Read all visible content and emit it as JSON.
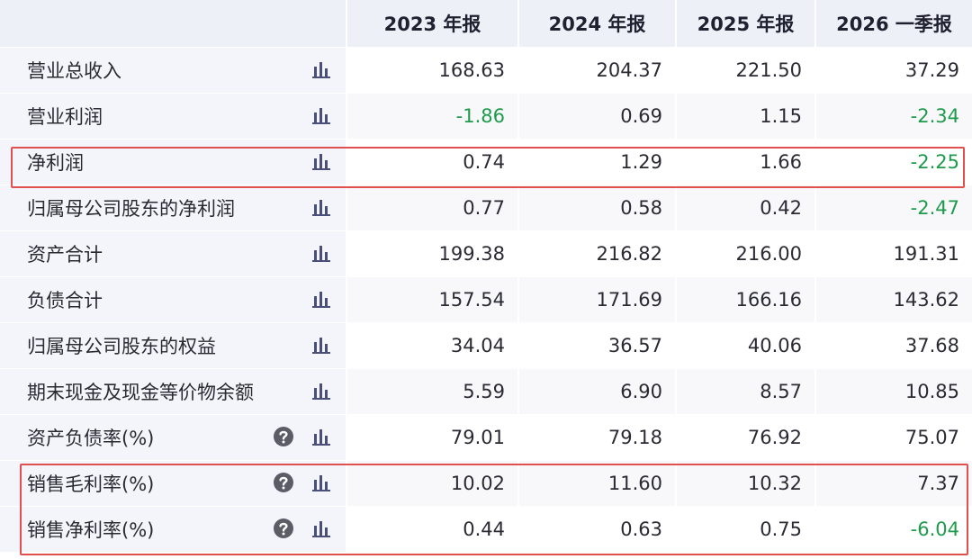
{
  "table": {
    "columns": [
      "2023 年报",
      "2024 年报",
      "2025 年报",
      "2026 一季报"
    ],
    "rows": [
      {
        "label": "营业总收入",
        "values": [
          "168.63",
          "204.37",
          "221.50",
          "37.29"
        ]
      },
      {
        "label": "营业利润",
        "values": [
          "-1.86",
          "0.69",
          "1.15",
          "-2.34"
        ]
      },
      {
        "label": "净利润",
        "values": [
          "0.74",
          "1.29",
          "1.66",
          "-2.25"
        ]
      },
      {
        "label": "归属母公司股东的净利润",
        "values": [
          "0.77",
          "0.58",
          "0.42",
          "-2.47"
        ]
      },
      {
        "label": "资产合计",
        "values": [
          "199.38",
          "216.82",
          "216.00",
          "191.31"
        ]
      },
      {
        "label": "负债合计",
        "values": [
          "157.54",
          "171.69",
          "166.16",
          "143.62"
        ]
      },
      {
        "label": "归属母公司股东的权益",
        "values": [
          "34.04",
          "36.57",
          "40.06",
          "37.68"
        ]
      },
      {
        "label": "期末现金及现金等价物余额",
        "values": [
          "5.59",
          "6.90",
          "8.57",
          "10.85"
        ]
      },
      {
        "label": "资产负债率(%)",
        "help": true,
        "values": [
          "79.01",
          "79.18",
          "76.92",
          "75.07"
        ]
      },
      {
        "label": "销售毛利率(%)",
        "help": true,
        "values": [
          "10.02",
          "11.60",
          "10.32",
          "7.37"
        ]
      },
      {
        "label": "销售净利率(%)",
        "help": true,
        "values": [
          "0.44",
          "0.63",
          "0.75",
          "-6.04"
        ]
      }
    ]
  }
}
